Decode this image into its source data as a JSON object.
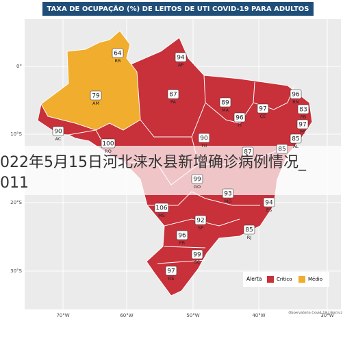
{
  "title": "TAXA DE OCUPAÇÃO (%) DE LEITOS DE UTI COVID-19 PARA ADULTOS",
  "axis": {
    "lat": [
      "0°",
      "10°S",
      "20°S",
      "30°S"
    ],
    "lon": [
      "70°W",
      "60°W",
      "50°W",
      "40°W",
      "30°W"
    ]
  },
  "states": [
    {
      "code": "RR",
      "value": 64,
      "color": "#f0ad2e"
    },
    {
      "code": "AP",
      "value": 94,
      "color": "#c8303a"
    },
    {
      "code": "AM",
      "value": 79,
      "color": "#f0ad2e"
    },
    {
      "code": "PA",
      "value": 87,
      "color": "#c8303a"
    },
    {
      "code": "AC",
      "value": 90,
      "color": "#c8303a"
    },
    {
      "code": "RO",
      "value": 100,
      "color": "#c8303a"
    },
    {
      "code": "MA",
      "value": 89,
      "color": "#c8303a"
    },
    {
      "code": "CE",
      "value": 97,
      "color": "#c8303a"
    },
    {
      "code": "RN",
      "value": 96,
      "color": "#c8303a"
    },
    {
      "code": "PB",
      "value": 83,
      "color": "#c8303a"
    },
    {
      "code": "PE",
      "value": 97,
      "color": "#c8303a"
    },
    {
      "code": "AL",
      "value": 85,
      "color": "#c8303a"
    },
    {
      "code": "PI",
      "value": 96,
      "color": "#c8303a"
    },
    {
      "code": "TO",
      "value": 90,
      "color": "#c8303a"
    },
    {
      "value": 85,
      "color": "#c8303a"
    },
    {
      "value": 87,
      "color": "#c8303a"
    },
    {
      "code": "GO",
      "value": 99,
      "color": "#c8303a"
    },
    {
      "code": "MG",
      "value": 93,
      "color": "#c8303a"
    },
    {
      "code": "ES",
      "value": 94,
      "color": "#c8303a"
    },
    {
      "code": "MS",
      "value": 106,
      "color": "#c8303a"
    },
    {
      "code": "SP",
      "value": 92,
      "color": "#c8303a"
    },
    {
      "code": "RJ",
      "value": 85,
      "color": "#c8303a"
    },
    {
      "code": "PR",
      "value": 96,
      "color": "#c8303a"
    },
    {
      "code": "SC",
      "value": 99,
      "color": "#c8303a"
    },
    {
      "code": "RS",
      "value": 97,
      "color": "#c8303a"
    }
  ],
  "legend": {
    "title": "Alerta",
    "items": [
      {
        "label": "Crítico",
        "color": "#c8303a"
      },
      {
        "label": "Médio",
        "color": "#f0ad2e"
      }
    ]
  },
  "credit": "Observatório Covid-19 | Fiocruz",
  "overlay": [
    "022年5月15日河北涞水县新增确诊病例情况_",
    "011"
  ]
}
